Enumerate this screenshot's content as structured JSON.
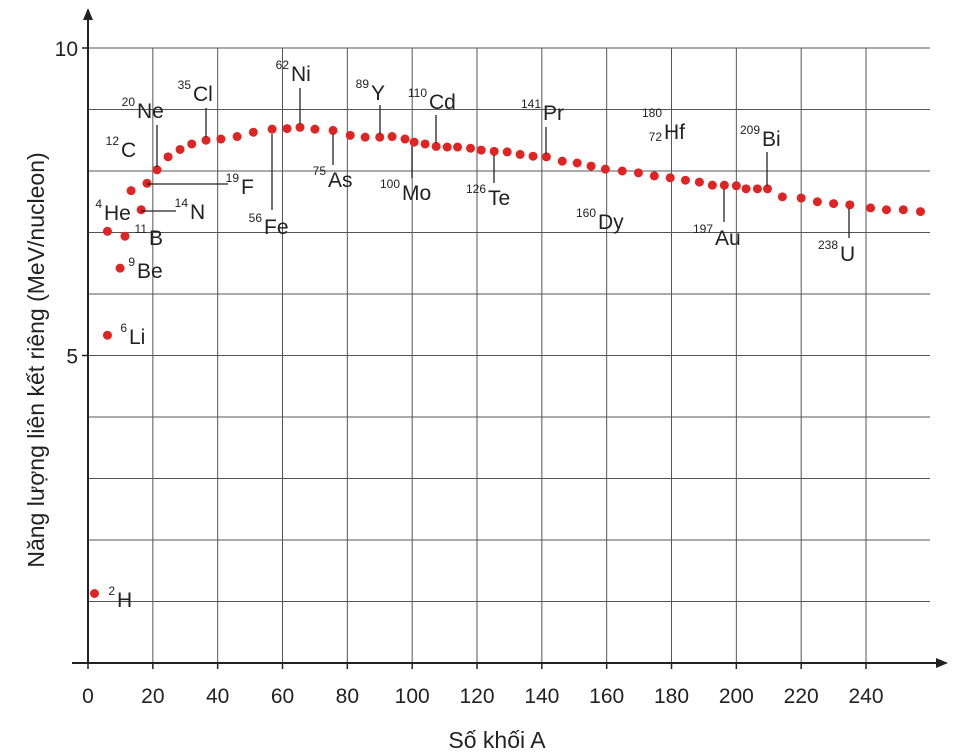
{
  "chart_data": {
    "type": "scatter",
    "xlabel": "Số khối A",
    "ylabel": "Năng lượng liên kết riêng (MeV/nucleon)",
    "xlim": [
      0,
      265
    ],
    "ylim": [
      0,
      10.6
    ],
    "xticks": [
      0,
      20,
      40,
      60,
      80,
      100,
      120,
      140,
      160,
      180,
      200,
      220,
      240
    ],
    "yticks": [
      5,
      10
    ],
    "ygrid": [
      1,
      2,
      3,
      4,
      5,
      6,
      7,
      8,
      9,
      10
    ],
    "grid": true,
    "color": "#e02424",
    "x": [
      2,
      6,
      9.9,
      6,
      11.4,
      13.3,
      16.4,
      18.2,
      21.3,
      24.7,
      28.4,
      32,
      36.4,
      41,
      46,
      51,
      56.8,
      61.4,
      65.4,
      70,
      75.6,
      80.9,
      85.5,
      90,
      93.8,
      97.8,
      100.6,
      104,
      107.4,
      110.8,
      114,
      118,
      121.3,
      125.3,
      129.3,
      133.3,
      137.3,
      141.4,
      146.3,
      150.9,
      155.2,
      159.6,
      164.8,
      169.8,
      174.7,
      179.6,
      184.3,
      188.6,
      192.6,
      196.3,
      200,
      203,
      206.5,
      209.6,
      214.2,
      220,
      225,
      230,
      235,
      241.4,
      246.3,
      251.5,
      256.8
    ],
    "values": [
      1.13,
      5.33,
      6.42,
      7.02,
      6.94,
      7.68,
      7.37,
      7.8,
      8.02,
      8.23,
      8.35,
      8.44,
      8.5,
      8.52,
      8.56,
      8.63,
      8.68,
      8.69,
      8.71,
      8.68,
      8.66,
      8.58,
      8.55,
      8.55,
      8.56,
      8.52,
      8.47,
      8.44,
      8.4,
      8.39,
      8.39,
      8.37,
      8.34,
      8.32,
      8.31,
      8.27,
      8.24,
      8.23,
      8.16,
      8.13,
      8.08,
      8.03,
      8.0,
      7.97,
      7.92,
      7.89,
      7.85,
      7.82,
      7.77,
      7.77,
      7.76,
      7.71,
      7.71,
      7.71,
      7.58,
      7.56,
      7.5,
      7.47,
      7.45,
      7.4,
      7.37,
      7.37,
      7.34
    ],
    "point_labels": [
      {
        "mass": "2",
        "symbol": "H"
      },
      {
        "mass": "6",
        "symbol": "Li"
      },
      {
        "mass": "9",
        "symbol": "Be"
      },
      {
        "mass": "4",
        "symbol": "He"
      },
      {
        "mass": "11",
        "symbol": "B"
      },
      {
        "mass": "12",
        "symbol": "C"
      },
      {
        "mass": "14",
        "symbol": "N"
      },
      {
        "mass": "19",
        "symbol": "F"
      },
      {
        "mass": "20",
        "symbol": "Ne"
      },
      null,
      null,
      null,
      {
        "mass": "35",
        "symbol": "Cl"
      },
      null,
      null,
      null,
      {
        "mass": "56",
        "symbol": "Fe"
      },
      null,
      {
        "mass": "62",
        "symbol": "Ni"
      },
      null,
      {
        "mass": "75",
        "symbol": "As"
      },
      null,
      null,
      {
        "mass": "89",
        "symbol": "Y"
      },
      null,
      null,
      {
        "mass": "100",
        "symbol": "Mo"
      },
      null,
      {
        "mass": "110",
        "symbol": "Cd"
      },
      null,
      null,
      null,
      null,
      {
        "mass": "126",
        "symbol": "Te"
      },
      null,
      null,
      null,
      {
        "mass": "141",
        "symbol": "Pr"
      },
      null,
      null,
      null,
      {
        "mass": "160",
        "symbol": "Dy"
      },
      null,
      null,
      null,
      {
        "mass": "180",
        "atomic": "72",
        "symbol": "Hf"
      },
      null,
      null,
      null,
      {
        "mass": "197",
        "symbol": "Au"
      },
      null,
      null,
      null,
      {
        "mass": "209",
        "symbol": "Bi"
      },
      null,
      null,
      null,
      null,
      {
        "mass": "238",
        "symbol": "U"
      },
      null,
      null,
      null,
      null
    ]
  }
}
